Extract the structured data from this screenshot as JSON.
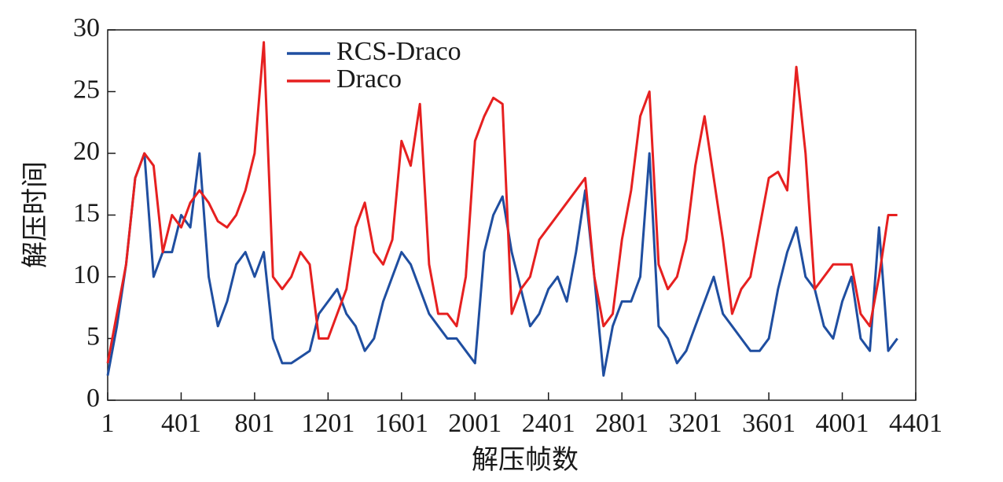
{
  "chart_data": {
    "type": "line",
    "xlabel": "解压帧数",
    "ylabel": "解压时间",
    "x": [
      1,
      51,
      101,
      151,
      201,
      251,
      301,
      351,
      401,
      451,
      501,
      551,
      601,
      651,
      701,
      751,
      801,
      851,
      901,
      951,
      1001,
      1051,
      1101,
      1151,
      1201,
      1251,
      1301,
      1351,
      1401,
      1451,
      1501,
      1551,
      1601,
      1651,
      1701,
      1751,
      1801,
      1851,
      1901,
      1951,
      2001,
      2051,
      2101,
      2151,
      2201,
      2251,
      2301,
      2351,
      2401,
      2451,
      2501,
      2551,
      2601,
      2651,
      2701,
      2751,
      2801,
      2851,
      2901,
      2951,
      3001,
      3051,
      3101,
      3151,
      3201,
      3251,
      3301,
      3351,
      3401,
      3451,
      3501,
      3551,
      3601,
      3651,
      3701,
      3751,
      3801,
      3851,
      3901,
      3951,
      4001,
      4051,
      4101,
      4151,
      4201,
      4251,
      4301
    ],
    "series": [
      {
        "name": "RCS-Draco",
        "color": "#1f4ea0",
        "values": [
          2,
          6,
          11,
          18,
          20,
          10,
          12,
          12,
          15,
          14,
          20,
          10,
          6,
          8,
          11,
          12,
          10,
          12,
          5,
          3,
          3,
          3.5,
          4,
          7,
          8,
          9,
          7,
          6,
          4,
          5,
          8,
          10,
          12,
          11,
          9,
          7,
          6,
          5,
          5,
          4,
          3,
          12,
          15,
          16.5,
          12,
          9,
          6,
          7,
          9,
          10,
          8,
          12,
          17,
          10,
          2,
          6,
          8,
          8,
          10,
          20,
          6,
          5,
          3,
          4,
          6,
          8,
          10,
          7,
          6,
          5,
          4,
          4,
          5,
          9,
          12,
          14,
          10,
          9,
          6,
          5,
          8,
          10,
          5,
          4,
          14,
          4,
          5
        ]
      },
      {
        "name": "Draco",
        "color": "#e62020",
        "values": [
          3,
          7,
          11,
          18,
          20,
          19,
          12,
          15,
          14,
          16,
          17,
          16,
          14.5,
          14,
          15,
          17,
          20,
          29,
          10,
          9,
          10,
          12,
          11,
          5,
          5,
          7,
          9,
          14,
          16,
          12,
          11,
          13,
          21,
          19,
          24,
          11,
          7,
          7,
          6,
          10,
          21,
          23,
          24.5,
          24,
          7,
          9,
          10,
          13,
          14,
          15,
          16,
          17,
          18,
          10,
          6,
          7,
          13,
          17,
          23,
          25,
          11,
          9,
          10,
          13,
          19,
          23,
          18,
          13,
          7,
          9,
          10,
          14,
          18,
          18.5,
          17,
          27,
          20,
          9,
          10,
          11,
          11,
          11,
          7,
          6,
          10,
          15,
          15
        ]
      }
    ],
    "xlim": [
      1,
      4401
    ],
    "xticks": [
      1,
      401,
      801,
      1201,
      1601,
      2001,
      2401,
      2801,
      3201,
      3601,
      4001,
      4401
    ],
    "ylim": [
      0,
      30
    ],
    "yticks": [
      0,
      5,
      10,
      15,
      20,
      25,
      30
    ],
    "legend": "upper left",
    "grid": false
  }
}
